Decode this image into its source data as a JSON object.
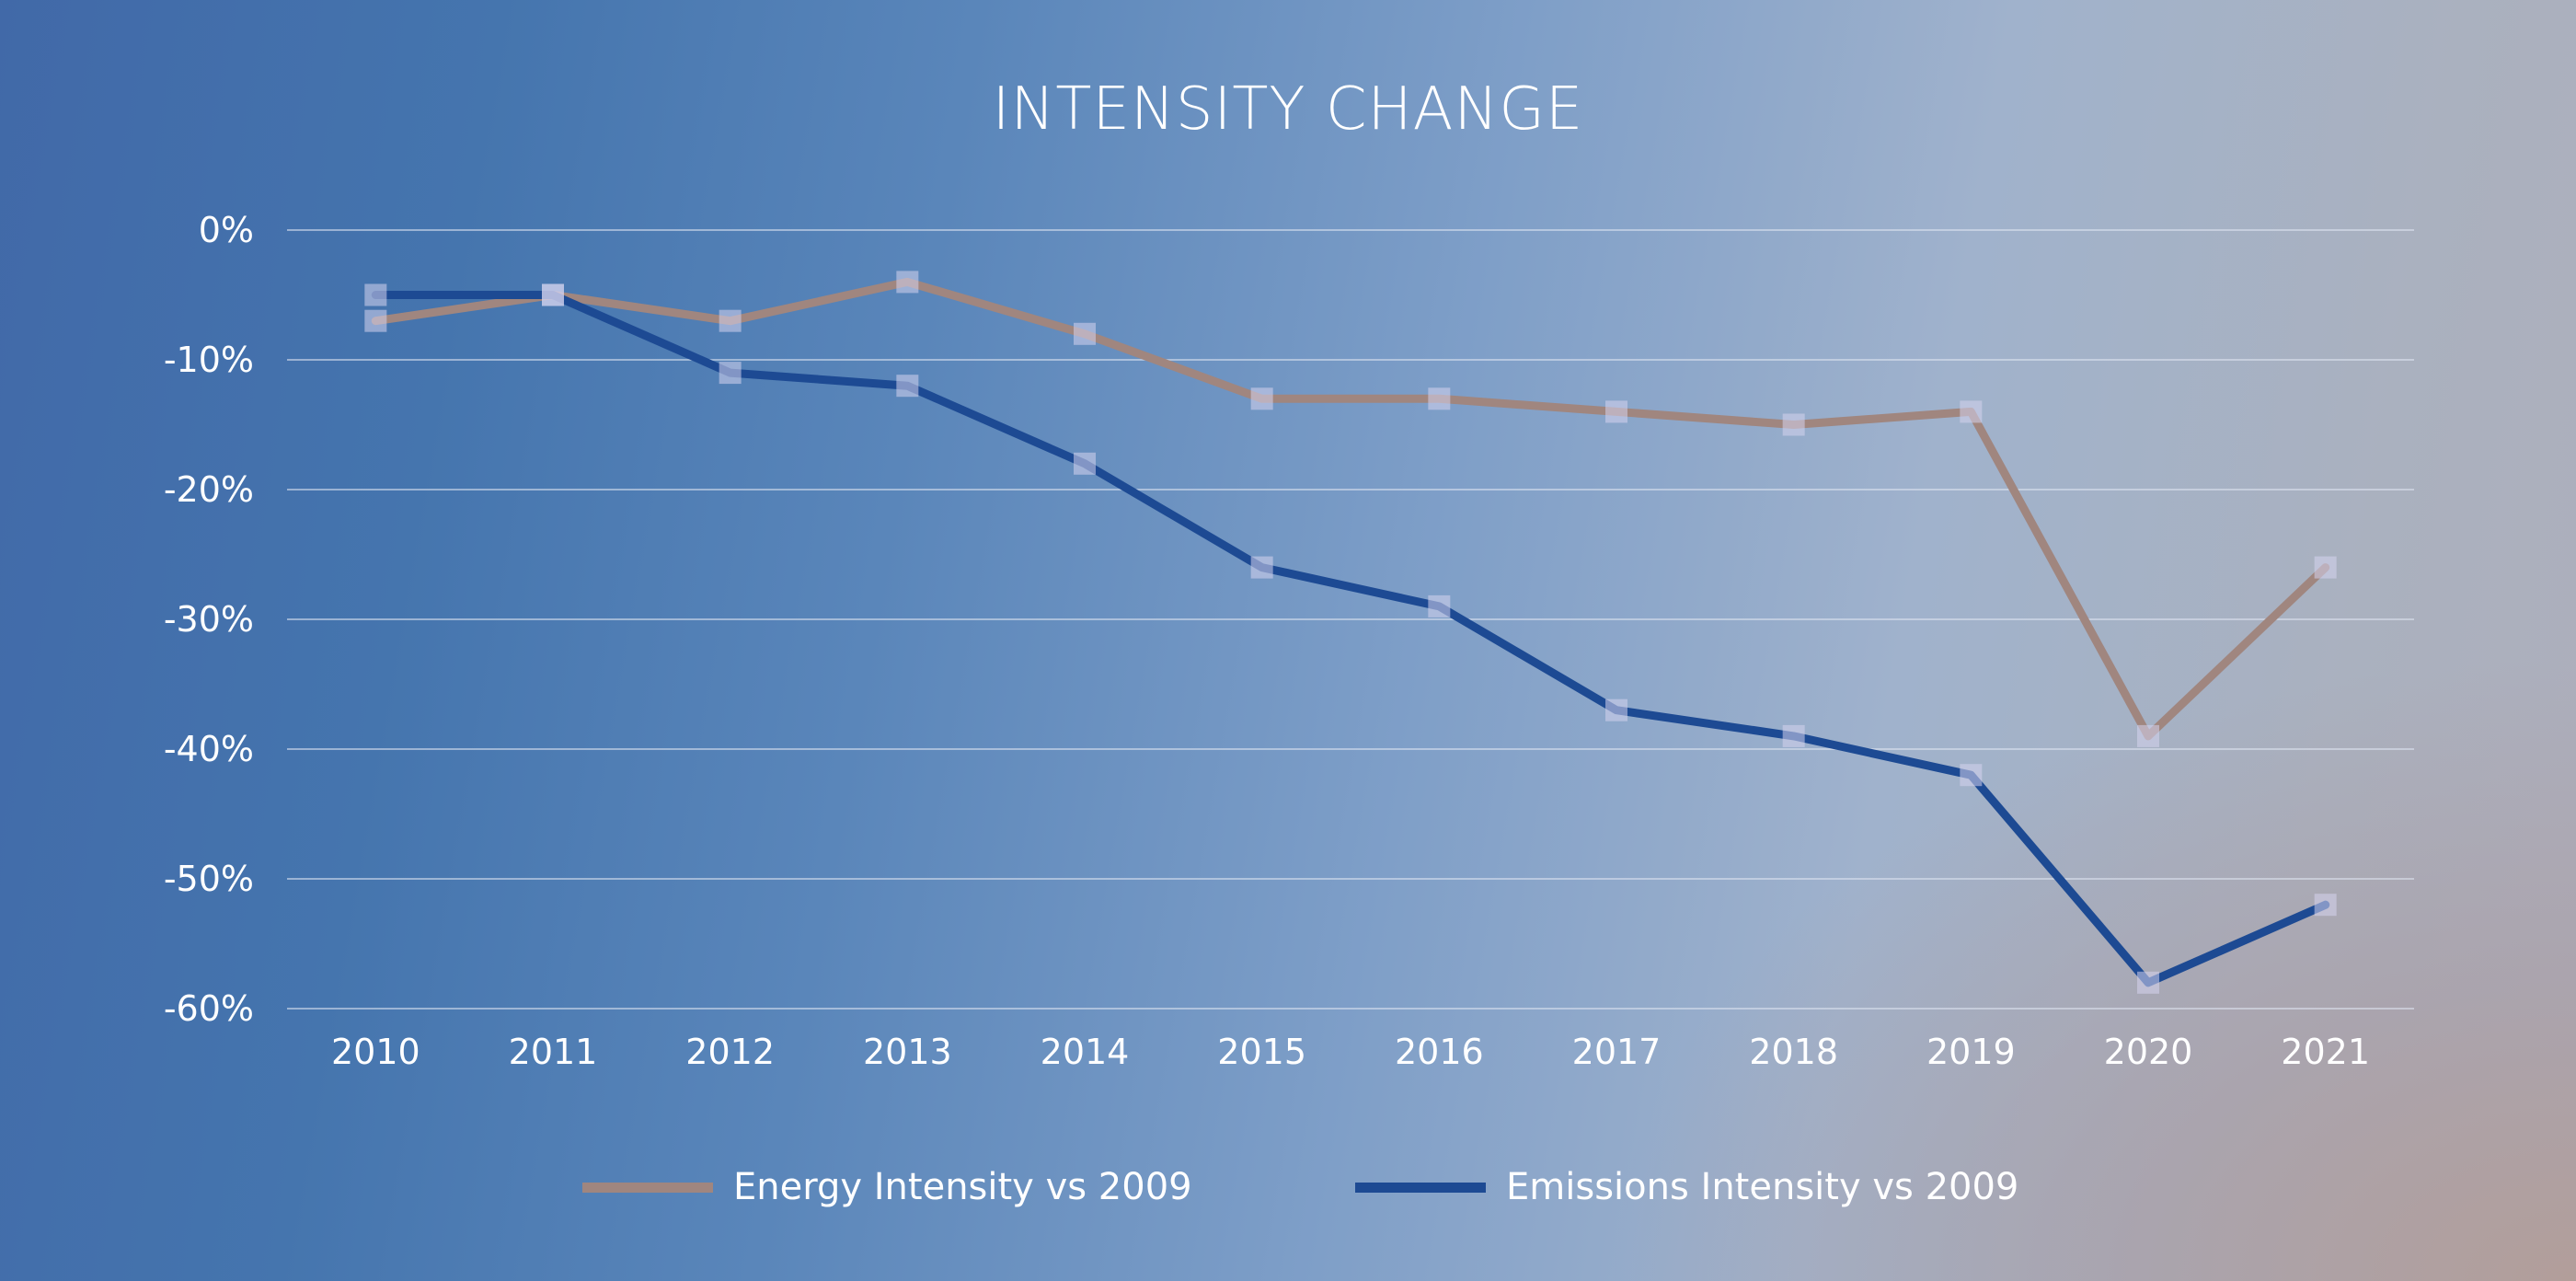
{
  "colors": {
    "energy_line": "#a0867f",
    "emissions_line": "#1d4a93",
    "marker_fill": "#d6d4ef",
    "gridline": "#dfe6f2",
    "text": "#ffffff"
  },
  "chart_data": {
    "type": "line",
    "title": "INTENSITY CHANGE",
    "xlabel": "",
    "ylabel": "",
    "categories": [
      "2010",
      "2011",
      "2012",
      "2013",
      "2014",
      "2015",
      "2016",
      "2017",
      "2018",
      "2019",
      "2020",
      "2021"
    ],
    "ylim": [
      -60,
      0
    ],
    "yticks": [
      0,
      -10,
      -20,
      -30,
      -40,
      -50,
      -60
    ],
    "ytick_labels": [
      "0%",
      "-10%",
      "-20%",
      "-30%",
      "-40%",
      "-50%",
      "-60%"
    ],
    "y_unit": "%",
    "grid": true,
    "legend_position": "bottom",
    "series": [
      {
        "name": "Energy Intensity vs 2009",
        "color": "#a0867f",
        "values": [
          -7,
          -5,
          -7,
          -4,
          -8,
          -13,
          -13,
          -14,
          -15,
          -14,
          -39,
          -26
        ]
      },
      {
        "name": "Emissions Intensity vs 2009",
        "color": "#1d4a93",
        "values": [
          -5,
          -5,
          -11,
          -12,
          -18,
          -26,
          -29,
          -37,
          -39,
          -42,
          -58,
          -52
        ]
      }
    ]
  }
}
